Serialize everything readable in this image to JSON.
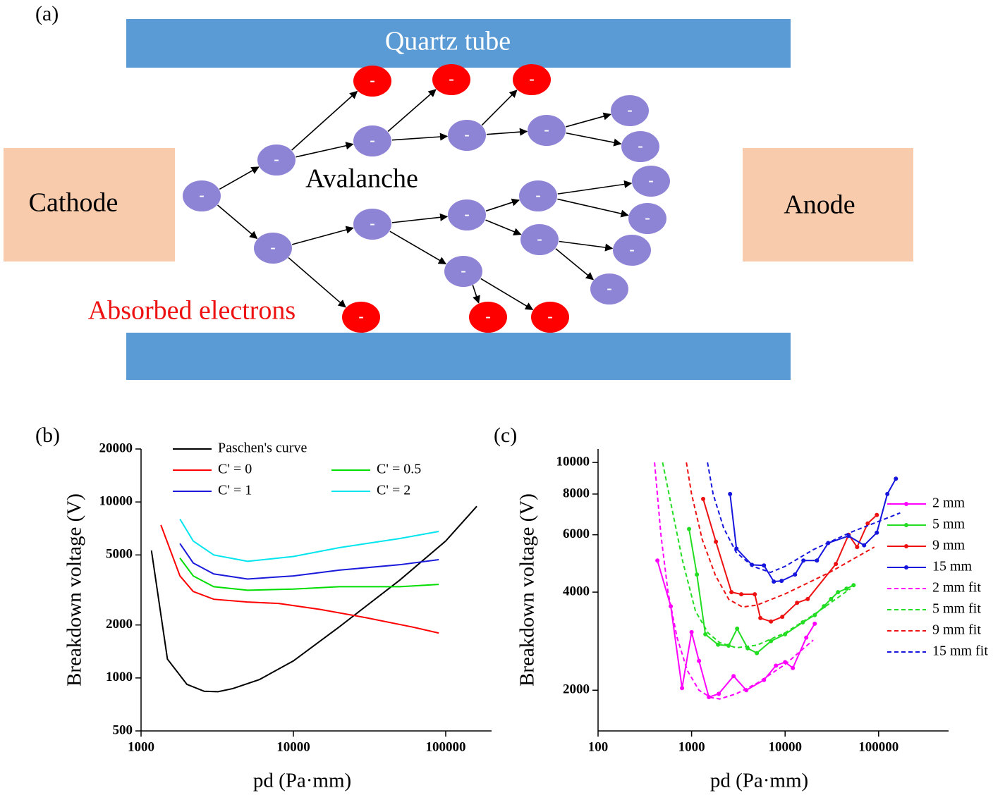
{
  "diagram": {
    "panel_label": "(a)",
    "quartz_label": "Quartz tube",
    "cathode": "Cathode",
    "anode": "Anode",
    "avalanche": "Avalanche",
    "absorbed": "Absorbed electrons",
    "electron_sign": "-"
  },
  "chart_data": [
    {
      "type": "line",
      "panel_label": "(b)",
      "x_label": "pd (Pa·mm)",
      "y_label": "Breakdown voltage (V)",
      "xscale": "log",
      "yscale": "log",
      "xlim": [
        1000,
        200000
      ],
      "ylim": [
        500,
        20000
      ],
      "xticks": [
        1000,
        10000,
        100000
      ],
      "yticks": [
        500,
        1000,
        2000,
        5000,
        10000,
        20000
      ],
      "series": [
        {
          "name": "Paschen's curve",
          "color": "#000000",
          "x": [
            1170,
            1490,
            2000,
            2600,
            3200,
            4000,
            6000,
            10000,
            20000,
            50000,
            100000,
            160000
          ],
          "values": [
            5300,
            1280,
            920,
            840,
            835,
            870,
            980,
            1250,
            1950,
            3600,
            6000,
            9450
          ]
        },
        {
          "name": "C' = 0",
          "color": "#ff0000",
          "x": [
            1350,
            1800,
            2200,
            3000,
            5000,
            8000,
            15000,
            30000,
            60000,
            90000
          ],
          "values": [
            7400,
            3800,
            3100,
            2800,
            2700,
            2650,
            2450,
            2200,
            1950,
            1800
          ]
        },
        {
          "name": "C' = 0.5",
          "color": "#00dd00",
          "x": [
            1800,
            2200,
            3000,
            5000,
            10000,
            20000,
            50000,
            90000
          ],
          "values": [
            4800,
            3800,
            3300,
            3150,
            3200,
            3300,
            3300,
            3400
          ]
        },
        {
          "name": "C' = 1",
          "color": "#1a1adb",
          "x": [
            1800,
            2200,
            3000,
            5000,
            10000,
            20000,
            50000,
            90000
          ],
          "values": [
            5800,
            4500,
            3900,
            3650,
            3800,
            4100,
            4400,
            4700
          ]
        },
        {
          "name": "C' = 2",
          "color": "#00e5ee",
          "x": [
            1800,
            2200,
            3000,
            5000,
            10000,
            20000,
            50000,
            90000
          ],
          "values": [
            8000,
            6000,
            5000,
            4600,
            4900,
            5500,
            6200,
            6800
          ]
        }
      ]
    },
    {
      "type": "line",
      "panel_label": "(c)",
      "x_label": "pd (Pa·mm)",
      "y_label": "Breakdown voltage (V)",
      "xscale": "log",
      "yscale": "log",
      "xlim": [
        100,
        560000
      ],
      "ylim": [
        1500,
        11000
      ],
      "xticks": [
        100,
        1000,
        10000,
        100000
      ],
      "yticks": [
        2000,
        4000,
        6000,
        8000,
        10000
      ],
      "series": [
        {
          "name": "2 mm",
          "color": "#ff00ff",
          "markers": true,
          "dashed": false,
          "x": [
            431,
            599,
            791,
            1000,
            1200,
            1531,
            1953,
            2813,
            3846,
            5940,
            7980,
            10000,
            12100,
            16840,
            20750
          ],
          "values": [
            5000,
            3620,
            2030,
            3015,
            2460,
            1905,
            1950,
            2210,
            2000,
            2150,
            2380,
            2440,
            2340,
            2900,
            3200
          ]
        },
        {
          "name": "5 mm",
          "color": "#22dd22",
          "markers": true,
          "dashed": false,
          "x": [
            940,
            1140,
            1404,
            1919,
            2490,
            3070,
            3980,
            4990,
            7060,
            10000,
            15450,
            20750,
            26000,
            31000,
            36800,
            45400,
            54000
          ],
          "values": [
            6250,
            4530,
            2970,
            2760,
            2740,
            3090,
            2690,
            2600,
            2830,
            2970,
            3230,
            3400,
            3620,
            3810,
            4000,
            4100,
            4200
          ]
        },
        {
          "name": "9 mm",
          "color": "#ee1111",
          "markers": true,
          "dashed": false,
          "x": [
            1330,
            1820,
            2670,
            3400,
            4740,
            5440,
            7060,
            9330,
            13430,
            17450,
            34900,
            47800,
            58900,
            76400,
            95700
          ],
          "values": [
            7730,
            5710,
            4000,
            3940,
            3940,
            3330,
            3250,
            3360,
            3710,
            3810,
            4880,
            6000,
            5500,
            6500,
            6900
          ]
        },
        {
          "name": "15 mm",
          "color": "#1515dd",
          "markers": true,
          "dashed": false,
          "x": [
            2580,
            3020,
            4420,
            5940,
            7570,
            9170,
            12760,
            15700,
            21900,
            28900,
            47800,
            70000,
            95700,
            124000,
            153000
          ],
          "values": [
            8000,
            5440,
            4850,
            4830,
            4310,
            4330,
            4530,
            5000,
            5000,
            5660,
            5950,
            5570,
            6090,
            8000,
            8920
          ]
        },
        {
          "name": "2 mm fit",
          "color": "#ff00ff",
          "markers": false,
          "dashed": true,
          "x": [
            402,
            470,
            560,
            700,
            900,
            1200,
            1600,
            2000,
            3000,
            5000,
            10000,
            20000
          ],
          "values": [
            10000,
            6000,
            4000,
            2900,
            2300,
            2000,
            1900,
            1880,
            1950,
            2100,
            2400,
            2850
          ]
        },
        {
          "name": "5 mm fit",
          "color": "#22dd22",
          "markers": false,
          "dashed": true,
          "x": [
            490,
            600,
            800,
            1100,
            1500,
            2000,
            3000,
            5000,
            10000,
            20000,
            50000
          ],
          "values": [
            10000,
            7500,
            5000,
            3500,
            3000,
            2800,
            2700,
            2750,
            3000,
            3400,
            4100
          ]
        },
        {
          "name": "9 mm fit",
          "color": "#ee1111",
          "markers": false,
          "dashed": true,
          "x": [
            880,
            1000,
            1300,
            1800,
            2500,
            3500,
            5000,
            10000,
            30000,
            90000
          ],
          "values": [
            10000,
            8000,
            5800,
            4500,
            3800,
            3600,
            3650,
            3950,
            4600,
            5500
          ]
        },
        {
          "name": "15 mm fit",
          "color": "#1515dd",
          "markers": false,
          "dashed": true,
          "x": [
            1480,
            1700,
            2200,
            3000,
            4500,
            7000,
            10000,
            20000,
            50000,
            170000
          ],
          "values": [
            10000,
            8000,
            6300,
            5300,
            4800,
            4600,
            4800,
            5400,
            6100,
            7000
          ]
        }
      ]
    }
  ]
}
